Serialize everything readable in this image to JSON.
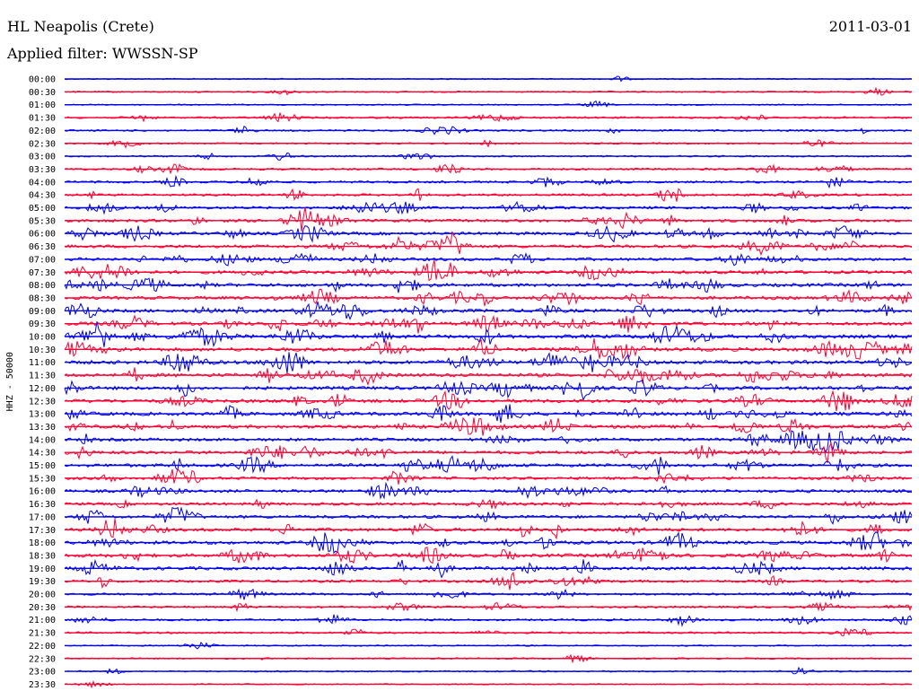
{
  "header": {
    "station": "HL Neapolis (Crete)",
    "date": "2011-03-01",
    "filter": "Applied filter: WWSSN-SP"
  },
  "colors": {
    "primary_trace": "#0000ee",
    "alternate_trace": "#ff0033",
    "label": "#000000"
  },
  "chart_data": {
    "type": "line",
    "subtype": "helicorder",
    "channel_label": "HHZ - 50000",
    "series_colors_alternate": [
      "#0000ee",
      "#ff0033"
    ],
    "rows": [
      {
        "time": "00:00",
        "activity": 0.05
      },
      {
        "time": "00:30",
        "activity": 0.15
      },
      {
        "time": "01:00",
        "activity": 0.1
      },
      {
        "time": "01:30",
        "activity": 0.3
      },
      {
        "time": "02:00",
        "activity": 0.25
      },
      {
        "time": "02:30",
        "activity": 0.2
      },
      {
        "time": "03:00",
        "activity": 0.2
      },
      {
        "time": "03:30",
        "activity": 0.35
      },
      {
        "time": "04:00",
        "activity": 0.4
      },
      {
        "time": "04:30",
        "activity": 0.45
      },
      {
        "time": "05:00",
        "activity": 0.55
      },
      {
        "time": "05:30",
        "activity": 0.65
      },
      {
        "time": "06:00",
        "activity": 0.7
      },
      {
        "time": "06:30",
        "activity": 0.7
      },
      {
        "time": "07:00",
        "activity": 0.7
      },
      {
        "time": "07:30",
        "activity": 0.75
      },
      {
        "time": "08:00",
        "activity": 0.8
      },
      {
        "time": "08:30",
        "activity": 0.75
      },
      {
        "time": "09:00",
        "activity": 0.8
      },
      {
        "time": "09:30",
        "activity": 0.85
      },
      {
        "time": "10:00",
        "activity": 0.9
      },
      {
        "time": "10:30",
        "activity": 0.9
      },
      {
        "time": "11:00",
        "activity": 0.9
      },
      {
        "time": "11:30",
        "activity": 0.9
      },
      {
        "time": "12:00",
        "activity": 0.85
      },
      {
        "time": "12:30",
        "activity": 0.85
      },
      {
        "time": "13:00",
        "activity": 0.85
      },
      {
        "time": "13:30",
        "activity": 0.8
      },
      {
        "time": "14:00",
        "activity": 0.7
      },
      {
        "time": "14:30",
        "activity": 0.75
      },
      {
        "time": "15:00",
        "activity": 0.75
      },
      {
        "time": "15:30",
        "activity": 0.6
      },
      {
        "time": "16:00",
        "activity": 0.65
      },
      {
        "time": "16:30",
        "activity": 0.6
      },
      {
        "time": "17:00",
        "activity": 0.7
      },
      {
        "time": "17:30",
        "activity": 0.75
      },
      {
        "time": "18:00",
        "activity": 0.8
      },
      {
        "time": "18:30",
        "activity": 0.8
      },
      {
        "time": "19:00",
        "activity": 0.8
      },
      {
        "time": "19:30",
        "activity": 0.55
      },
      {
        "time": "20:00",
        "activity": 0.4
      },
      {
        "time": "20:30",
        "activity": 0.35
      },
      {
        "time": "21:00",
        "activity": 0.35
      },
      {
        "time": "21:30",
        "activity": 0.3
      },
      {
        "time": "22:00",
        "activity": 0.1
      },
      {
        "time": "22:30",
        "activity": 0.15
      },
      {
        "time": "23:00",
        "activity": 0.12
      },
      {
        "time": "23:30",
        "activity": 0.05
      }
    ]
  }
}
